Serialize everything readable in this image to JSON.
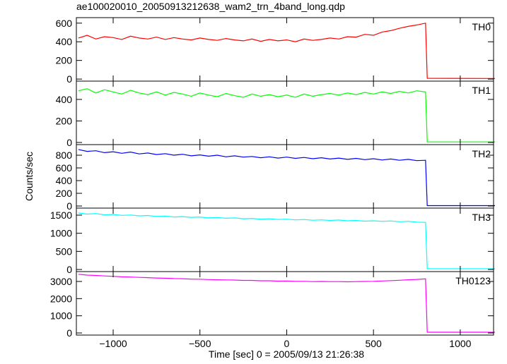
{
  "chart_data": {
    "type": "line",
    "title": "ae100020010_20050913212638_wam2_trn_4band_long.qdp",
    "xlabel": "Time [sec] 0 = 2005/09/13 21:26:38",
    "ylabel": "Counts/sec",
    "xlim": [
      -1212,
      1192
    ],
    "xticks": [
      {
        "value": -1000,
        "label": "−1000"
      },
      {
        "value": -500,
        "label": "−500"
      },
      0,
      500,
      1000
    ],
    "x": [
      -1200,
      -1150,
      -1100,
      -1050,
      -1000,
      -950,
      -900,
      -850,
      -800,
      -750,
      -700,
      -650,
      -600,
      -550,
      -500,
      -450,
      -400,
      -350,
      -300,
      -250,
      -200,
      -150,
      -100,
      -50,
      0,
      50,
      100,
      150,
      200,
      250,
      300,
      350,
      400,
      450,
      500,
      550,
      600,
      650,
      700,
      750,
      800,
      810,
      1200
    ],
    "series": [
      {
        "name": "TH0",
        "color": "#ff0000",
        "ylim": [
          -22,
          659
        ],
        "yticks": [
          0,
          200,
          400,
          600
        ],
        "values": [
          440,
          470,
          430,
          455,
          445,
          425,
          460,
          440,
          430,
          450,
          425,
          445,
          430,
          420,
          440,
          425,
          415,
          435,
          420,
          410,
          430,
          405,
          425,
          410,
          420,
          400,
          430,
          415,
          425,
          440,
          430,
          455,
          450,
          480,
          470,
          505,
          520,
          545,
          565,
          580,
          600,
          8,
          6
        ]
      },
      {
        "name": "TH1",
        "color": "#00ff00",
        "ylim": [
          -20,
          570
        ],
        "yticks": [
          0,
          200,
          400
        ],
        "values": [
          480,
          500,
          460,
          490,
          470,
          450,
          485,
          460,
          445,
          470,
          440,
          465,
          450,
          430,
          460,
          440,
          425,
          455,
          435,
          420,
          450,
          430,
          445,
          425,
          440,
          420,
          450,
          430,
          445,
          455,
          440,
          460,
          445,
          465,
          450,
          470,
          455,
          475,
          460,
          480,
          470,
          5,
          5
        ]
      },
      {
        "name": "TH2",
        "color": "#0000ff",
        "ylim": [
          -33,
          967
        ],
        "yticks": [
          0,
          200,
          400,
          600,
          800
        ],
        "values": [
          890,
          860,
          870,
          840,
          855,
          830,
          850,
          820,
          835,
          810,
          825,
          800,
          815,
          790,
          805,
          785,
          800,
          775,
          790,
          770,
          780,
          760,
          775,
          755,
          770,
          750,
          765,
          745,
          760,
          740,
          755,
          735,
          750,
          730,
          745,
          725,
          740,
          720,
          735,
          715,
          720,
          6,
          6
        ]
      },
      {
        "name": "TH3",
        "color": "#00ffff",
        "ylim": [
          -58,
          1695
        ],
        "yticks": [
          0,
          500,
          1000,
          1500
        ],
        "values": [
          1560,
          1530,
          1545,
          1510,
          1520,
          1495,
          1505,
          1480,
          1490,
          1465,
          1475,
          1450,
          1460,
          1440,
          1450,
          1425,
          1435,
          1415,
          1425,
          1400,
          1410,
          1390,
          1400,
          1380,
          1390,
          1370,
          1380,
          1360,
          1370,
          1355,
          1365,
          1345,
          1355,
          1335,
          1345,
          1330,
          1340,
          1320,
          1330,
          1310,
          1300,
          20,
          20
        ]
      },
      {
        "name": "TH0123",
        "color": "#ff00ff",
        "ylim": [
          -123,
          3575
        ],
        "yticks": [
          0,
          1000,
          2000,
          3000
        ],
        "values": [
          3420,
          3370,
          3350,
          3320,
          3300,
          3270,
          3260,
          3240,
          3220,
          3200,
          3190,
          3170,
          3160,
          3140,
          3130,
          3110,
          3100,
          3090,
          3080,
          3060,
          3060,
          3040,
          3040,
          3020,
          3030,
          3010,
          3010,
          2990,
          3000,
          2990,
          2990,
          2980,
          2990,
          3000,
          3010,
          3030,
          3050,
          3070,
          3100,
          3120,
          3150,
          40,
          40
        ]
      }
    ]
  }
}
